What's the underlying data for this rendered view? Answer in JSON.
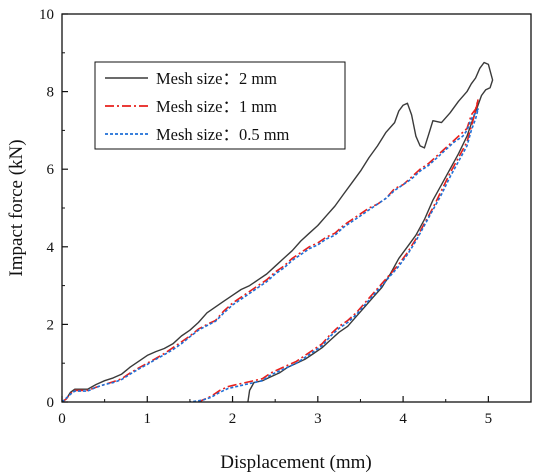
{
  "chart_data": {
    "type": "line",
    "xlabel": "Displacement (mm)",
    "ylabel": "Impact force (kN)",
    "xlim": [
      0,
      5.5
    ],
    "ylim": [
      0,
      10
    ],
    "xticks": [
      "0",
      "1",
      "2",
      "3",
      "4",
      "5"
    ],
    "yticks": [
      "0",
      "2",
      "4",
      "6",
      "8",
      "10"
    ],
    "legend_position": "top-left",
    "grid": false,
    "series": [
      {
        "name": "Mesh size：2 mm",
        "color": "#3a3a3a",
        "style": "solid",
        "points": [
          [
            0.0,
            0.0
          ],
          [
            0.05,
            0.08
          ],
          [
            0.1,
            0.25
          ],
          [
            0.15,
            0.33
          ],
          [
            0.3,
            0.33
          ],
          [
            0.4,
            0.45
          ],
          [
            0.5,
            0.55
          ],
          [
            0.6,
            0.62
          ],
          [
            0.7,
            0.72
          ],
          [
            0.8,
            0.9
          ],
          [
            0.9,
            1.05
          ],
          [
            1.0,
            1.2
          ],
          [
            1.1,
            1.3
          ],
          [
            1.2,
            1.38
          ],
          [
            1.3,
            1.5
          ],
          [
            1.4,
            1.7
          ],
          [
            1.5,
            1.85
          ],
          [
            1.6,
            2.05
          ],
          [
            1.7,
            2.3
          ],
          [
            1.8,
            2.45
          ],
          [
            1.9,
            2.6
          ],
          [
            2.0,
            2.75
          ],
          [
            2.1,
            2.9
          ],
          [
            2.2,
            3.0
          ],
          [
            2.3,
            3.15
          ],
          [
            2.4,
            3.3
          ],
          [
            2.5,
            3.5
          ],
          [
            2.6,
            3.7
          ],
          [
            2.7,
            3.9
          ],
          [
            2.8,
            4.15
          ],
          [
            2.9,
            4.35
          ],
          [
            3.0,
            4.55
          ],
          [
            3.1,
            4.8
          ],
          [
            3.2,
            5.05
          ],
          [
            3.3,
            5.35
          ],
          [
            3.4,
            5.65
          ],
          [
            3.5,
            5.95
          ],
          [
            3.6,
            6.3
          ],
          [
            3.7,
            6.6
          ],
          [
            3.8,
            6.95
          ],
          [
            3.9,
            7.2
          ],
          [
            3.95,
            7.5
          ],
          [
            4.0,
            7.65
          ],
          [
            4.05,
            7.7
          ],
          [
            4.1,
            7.4
          ],
          [
            4.15,
            6.85
          ],
          [
            4.2,
            6.6
          ],
          [
            4.25,
            6.55
          ],
          [
            4.3,
            6.9
          ],
          [
            4.35,
            7.25
          ],
          [
            4.45,
            7.2
          ],
          [
            4.55,
            7.45
          ],
          [
            4.65,
            7.75
          ],
          [
            4.75,
            8.0
          ],
          [
            4.8,
            8.2
          ],
          [
            4.85,
            8.35
          ],
          [
            4.9,
            8.6
          ],
          [
            4.95,
            8.75
          ],
          [
            5.0,
            8.7
          ],
          [
            5.05,
            8.3
          ],
          [
            5.02,
            8.1
          ],
          [
            4.97,
            8.05
          ],
          [
            4.92,
            7.9
          ],
          [
            4.87,
            7.6
          ],
          [
            4.82,
            7.3
          ],
          [
            4.75,
            6.85
          ],
          [
            4.65,
            6.4
          ],
          [
            4.55,
            6.0
          ],
          [
            4.45,
            5.6
          ],
          [
            4.35,
            5.2
          ],
          [
            4.25,
            4.7
          ],
          [
            4.15,
            4.3
          ],
          [
            4.05,
            4.0
          ],
          [
            3.95,
            3.7
          ],
          [
            3.85,
            3.3
          ],
          [
            3.75,
            2.95
          ],
          [
            3.65,
            2.7
          ],
          [
            3.55,
            2.45
          ],
          [
            3.45,
            2.2
          ],
          [
            3.35,
            1.95
          ],
          [
            3.25,
            1.8
          ],
          [
            3.15,
            1.6
          ],
          [
            3.05,
            1.4
          ],
          [
            2.95,
            1.25
          ],
          [
            2.85,
            1.1
          ],
          [
            2.75,
            1.0
          ],
          [
            2.65,
            0.9
          ],
          [
            2.55,
            0.75
          ],
          [
            2.45,
            0.65
          ],
          [
            2.35,
            0.55
          ],
          [
            2.25,
            0.5
          ],
          [
            2.2,
            0.3
          ],
          [
            2.18,
            0.0
          ]
        ]
      },
      {
        "name": "Mesh size：1 mm",
        "color": "#e8201c",
        "style": "dashdot",
        "points": [
          [
            0.0,
            0.0
          ],
          [
            0.05,
            0.08
          ],
          [
            0.1,
            0.22
          ],
          [
            0.15,
            0.3
          ],
          [
            0.3,
            0.3
          ],
          [
            0.4,
            0.38
          ],
          [
            0.5,
            0.45
          ],
          [
            0.6,
            0.52
          ],
          [
            0.7,
            0.6
          ],
          [
            0.8,
            0.75
          ],
          [
            0.9,
            0.88
          ],
          [
            1.0,
            1.0
          ],
          [
            1.1,
            1.12
          ],
          [
            1.2,
            1.25
          ],
          [
            1.3,
            1.4
          ],
          [
            1.4,
            1.55
          ],
          [
            1.5,
            1.7
          ],
          [
            1.6,
            1.88
          ],
          [
            1.7,
            2.0
          ],
          [
            1.8,
            2.1
          ],
          [
            1.9,
            2.35
          ],
          [
            2.0,
            2.55
          ],
          [
            2.1,
            2.7
          ],
          [
            2.2,
            2.85
          ],
          [
            2.3,
            3.0
          ],
          [
            2.4,
            3.15
          ],
          [
            2.5,
            3.35
          ],
          [
            2.6,
            3.5
          ],
          [
            2.7,
            3.7
          ],
          [
            2.8,
            3.85
          ],
          [
            2.9,
            4.0
          ],
          [
            3.0,
            4.1
          ],
          [
            3.1,
            4.25
          ],
          [
            3.2,
            4.35
          ],
          [
            3.3,
            4.55
          ],
          [
            3.4,
            4.7
          ],
          [
            3.5,
            4.85
          ],
          [
            3.6,
            5.0
          ],
          [
            3.7,
            5.1
          ],
          [
            3.8,
            5.25
          ],
          [
            3.9,
            5.5
          ],
          [
            4.0,
            5.6
          ],
          [
            4.1,
            5.8
          ],
          [
            4.2,
            6.0
          ],
          [
            4.3,
            6.15
          ],
          [
            4.4,
            6.35
          ],
          [
            4.5,
            6.55
          ],
          [
            4.6,
            6.75
          ],
          [
            4.7,
            6.95
          ],
          [
            4.75,
            7.05
          ],
          [
            4.8,
            7.4
          ],
          [
            4.85,
            7.55
          ],
          [
            4.88,
            7.8
          ],
          [
            4.85,
            7.5
          ],
          [
            4.8,
            7.1
          ],
          [
            4.75,
            6.7
          ],
          [
            4.65,
            6.3
          ],
          [
            4.55,
            5.9
          ],
          [
            4.45,
            5.45
          ],
          [
            4.35,
            5.0
          ],
          [
            4.25,
            4.6
          ],
          [
            4.15,
            4.2
          ],
          [
            4.05,
            3.85
          ],
          [
            3.95,
            3.55
          ],
          [
            3.85,
            3.3
          ],
          [
            3.75,
            3.05
          ],
          [
            3.65,
            2.8
          ],
          [
            3.55,
            2.55
          ],
          [
            3.45,
            2.3
          ],
          [
            3.35,
            2.1
          ],
          [
            3.25,
            1.95
          ],
          [
            3.15,
            1.75
          ],
          [
            3.05,
            1.5
          ],
          [
            2.95,
            1.35
          ],
          [
            2.85,
            1.2
          ],
          [
            2.75,
            1.05
          ],
          [
            2.65,
            0.95
          ],
          [
            2.55,
            0.85
          ],
          [
            2.45,
            0.75
          ],
          [
            2.35,
            0.6
          ],
          [
            2.25,
            0.55
          ],
          [
            2.15,
            0.5
          ],
          [
            2.05,
            0.45
          ],
          [
            1.95,
            0.4
          ],
          [
            1.85,
            0.3
          ],
          [
            1.75,
            0.15
          ],
          [
            1.6,
            0.0
          ]
        ]
      },
      {
        "name": "Mesh size：0.5 mm",
        "color": "#1f6fd6",
        "style": "dotted",
        "points": [
          [
            0.0,
            0.0
          ],
          [
            0.05,
            0.1
          ],
          [
            0.1,
            0.2
          ],
          [
            0.15,
            0.28
          ],
          [
            0.3,
            0.28
          ],
          [
            0.4,
            0.38
          ],
          [
            0.5,
            0.45
          ],
          [
            0.6,
            0.5
          ],
          [
            0.7,
            0.58
          ],
          [
            0.8,
            0.72
          ],
          [
            0.9,
            0.85
          ],
          [
            1.0,
            0.97
          ],
          [
            1.1,
            1.1
          ],
          [
            1.2,
            1.22
          ],
          [
            1.3,
            1.35
          ],
          [
            1.4,
            1.5
          ],
          [
            1.5,
            1.68
          ],
          [
            1.6,
            1.85
          ],
          [
            1.7,
            1.97
          ],
          [
            1.8,
            2.08
          ],
          [
            1.9,
            2.3
          ],
          [
            2.0,
            2.5
          ],
          [
            2.1,
            2.65
          ],
          [
            2.2,
            2.8
          ],
          [
            2.3,
            2.95
          ],
          [
            2.4,
            3.1
          ],
          [
            2.5,
            3.3
          ],
          [
            2.6,
            3.45
          ],
          [
            2.7,
            3.65
          ],
          [
            2.8,
            3.8
          ],
          [
            2.9,
            3.95
          ],
          [
            3.0,
            4.05
          ],
          [
            3.1,
            4.2
          ],
          [
            3.2,
            4.3
          ],
          [
            3.3,
            4.5
          ],
          [
            3.4,
            4.65
          ],
          [
            3.5,
            4.8
          ],
          [
            3.6,
            4.95
          ],
          [
            3.7,
            5.1
          ],
          [
            3.8,
            5.25
          ],
          [
            3.9,
            5.45
          ],
          [
            4.0,
            5.6
          ],
          [
            4.1,
            5.75
          ],
          [
            4.2,
            5.95
          ],
          [
            4.3,
            6.1
          ],
          [
            4.4,
            6.3
          ],
          [
            4.5,
            6.5
          ],
          [
            4.6,
            6.7
          ],
          [
            4.7,
            6.85
          ],
          [
            4.75,
            7.0
          ],
          [
            4.8,
            7.3
          ],
          [
            4.85,
            7.45
          ],
          [
            4.88,
            7.55
          ],
          [
            4.85,
            7.3
          ],
          [
            4.8,
            7.0
          ],
          [
            4.75,
            6.6
          ],
          [
            4.65,
            6.2
          ],
          [
            4.55,
            5.8
          ],
          [
            4.45,
            5.35
          ],
          [
            4.35,
            4.95
          ],
          [
            4.25,
            4.55
          ],
          [
            4.15,
            4.15
          ],
          [
            4.05,
            3.8
          ],
          [
            3.95,
            3.5
          ],
          [
            3.85,
            3.25
          ],
          [
            3.75,
            3.0
          ],
          [
            3.65,
            2.75
          ],
          [
            3.55,
            2.5
          ],
          [
            3.45,
            2.25
          ],
          [
            3.35,
            2.05
          ],
          [
            3.25,
            1.9
          ],
          [
            3.15,
            1.7
          ],
          [
            3.05,
            1.45
          ],
          [
            2.95,
            1.3
          ],
          [
            2.85,
            1.15
          ],
          [
            2.75,
            1.0
          ],
          [
            2.65,
            0.9
          ],
          [
            2.55,
            0.8
          ],
          [
            2.45,
            0.7
          ],
          [
            2.35,
            0.55
          ],
          [
            2.25,
            0.5
          ],
          [
            2.15,
            0.45
          ],
          [
            2.05,
            0.4
          ],
          [
            1.95,
            0.35
          ],
          [
            1.85,
            0.25
          ],
          [
            1.75,
            0.12
          ],
          [
            1.65,
            0.05
          ],
          [
            1.5,
            0.0
          ]
        ]
      }
    ]
  }
}
